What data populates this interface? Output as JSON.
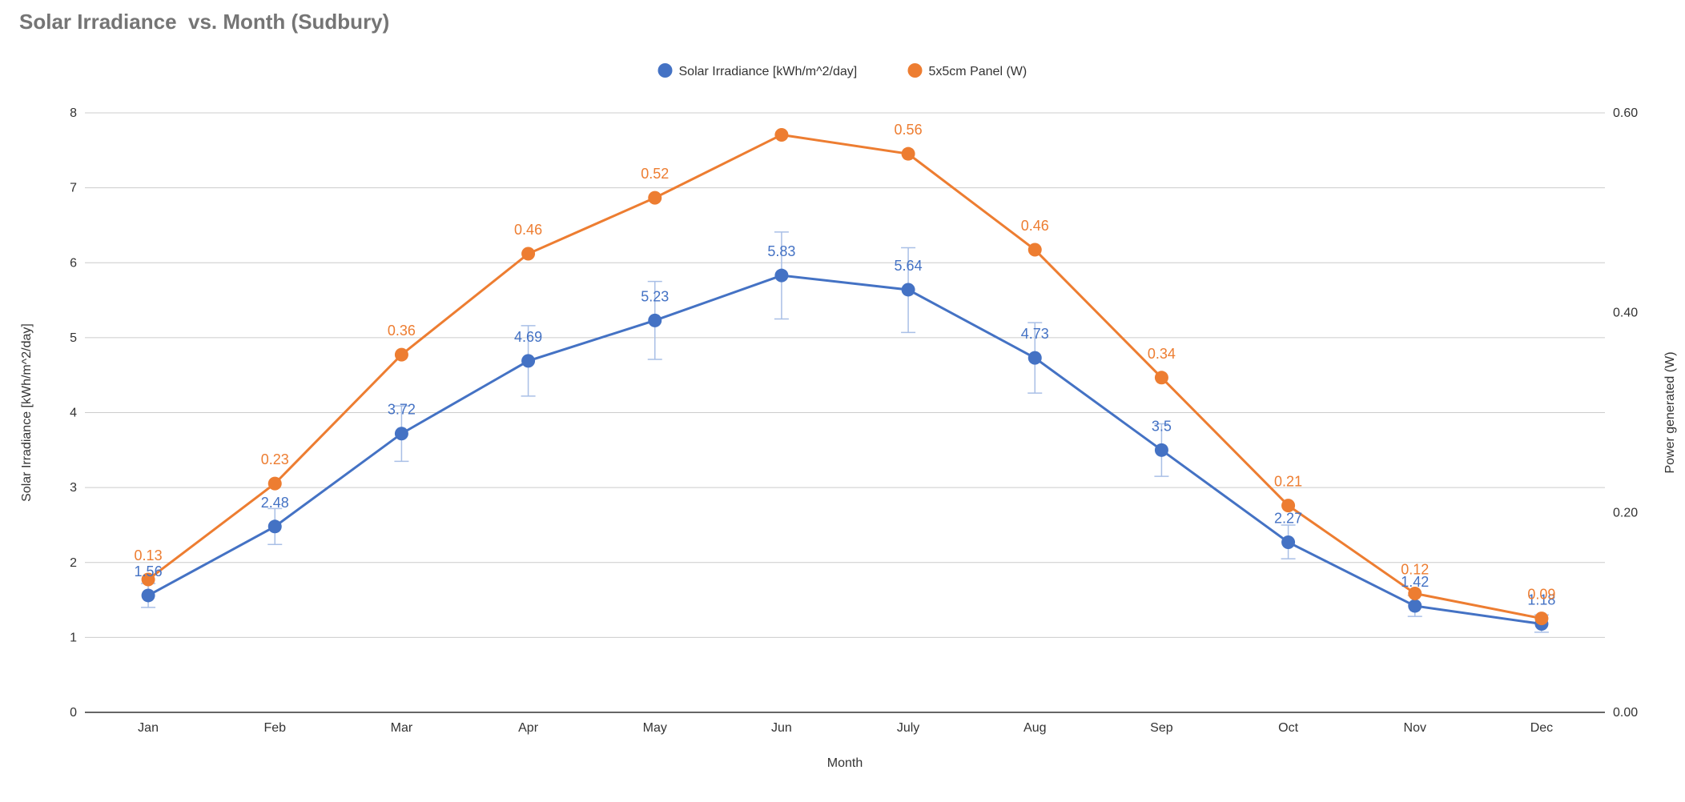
{
  "chart_data": {
    "type": "line",
    "title": "Solar Irradiance  vs. Month (Sudbury)",
    "xlabel": "Month",
    "ylabel_left": "Solar Irradiance [kWh/m^2/day]",
    "ylabel_right": "Power generated (W)",
    "legend_position": "top-center",
    "grid": true,
    "categories": [
      "Jan",
      "Feb",
      "Mar",
      "Apr",
      "May",
      "Jun",
      "July",
      "Aug",
      "Sep",
      "Oct",
      "Nov",
      "Dec"
    ],
    "left_axis": {
      "min": 0,
      "max": 8,
      "ticks": [
        "0",
        "1",
        "2",
        "3",
        "4",
        "5",
        "6",
        "7",
        "8"
      ]
    },
    "right_axis": {
      "min": 0,
      "max": 0.6,
      "ticks": [
        "0.00",
        "0.20",
        "0.40",
        "0.60"
      ]
    },
    "series": [
      {
        "name": "Solar Irradiance [kWh/m^2/day]",
        "axis": "left",
        "color": "#4472c4",
        "values": [
          1.56,
          2.48,
          3.72,
          4.69,
          5.23,
          5.83,
          5.64,
          4.73,
          3.5,
          2.27,
          1.42,
          1.18
        ],
        "labels": [
          "1.56",
          "2.48",
          "3.72",
          "4.69",
          "5.23",
          "5.83",
          "5.64",
          "4.73",
          "3.5",
          "2.27",
          "1.42",
          "1.18"
        ],
        "error_low": [
          1.4,
          2.24,
          3.35,
          4.22,
          4.71,
          5.25,
          5.07,
          4.26,
          3.15,
          2.05,
          1.28,
          1.07
        ],
        "error_high": [
          1.72,
          2.72,
          4.09,
          5.16,
          5.75,
          6.41,
          6.2,
          5.2,
          3.85,
          2.5,
          1.56,
          1.3
        ]
      },
      {
        "name": "5x5cm Panel (W)",
        "axis": "right",
        "color": "#ed7d31",
        "values": [
          0.133,
          0.229,
          0.358,
          0.459,
          0.515,
          0.578,
          0.559,
          0.463,
          0.335,
          0.207,
          0.119,
          0.094
        ],
        "labels": [
          "0.13",
          "0.23",
          "0.36",
          "0.46",
          "0.52",
          "",
          "0.56",
          "0.46",
          "0.34",
          "0.21",
          "0.12",
          "0.09"
        ]
      }
    ]
  }
}
